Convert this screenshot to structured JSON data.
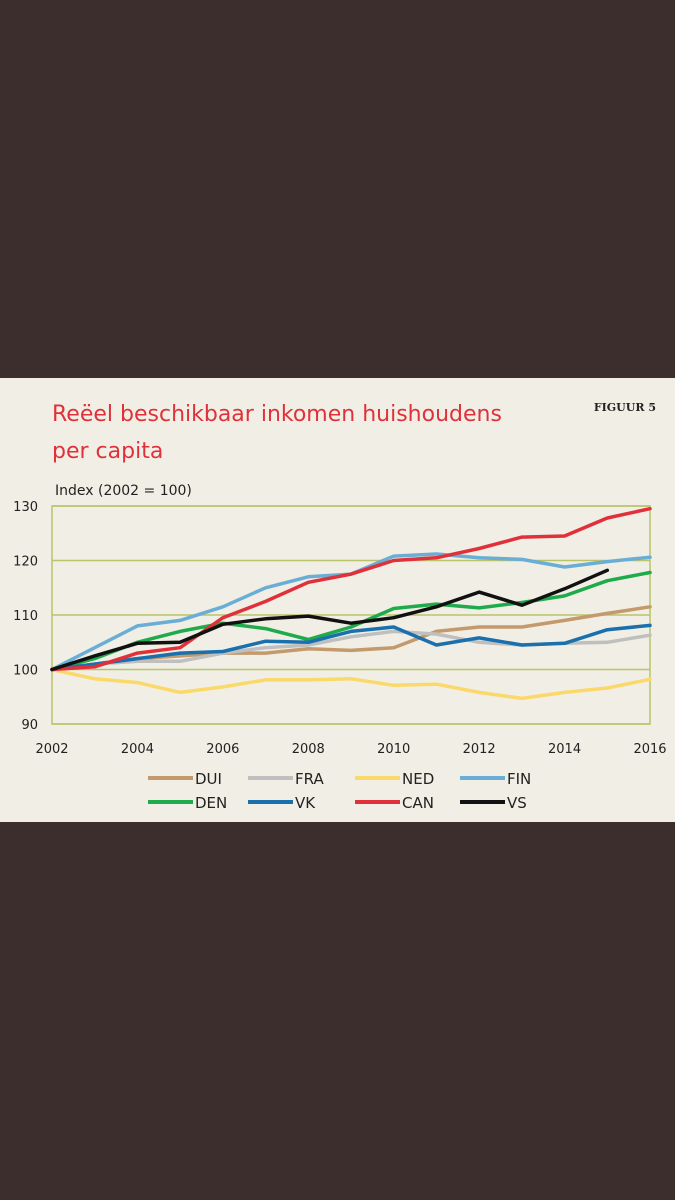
{
  "figure": {
    "title_line1": "Reëel beschikbaar inkomen huishoudens",
    "title_line2": "per capita",
    "figure_label": "FIGUUR 5"
  },
  "chart_data": {
    "type": "line",
    "title": "Reëel beschikbaar inkomen huishoudens per capita",
    "ylabel": "Index (2002 = 100)",
    "xlabel": "",
    "xlim": [
      2002,
      2016
    ],
    "ylim": [
      90,
      130
    ],
    "x_ticks": [
      2002,
      2004,
      2006,
      2008,
      2010,
      2012,
      2014,
      2016
    ],
    "y_ticks": [
      90,
      100,
      110,
      120,
      130
    ],
    "grid": true,
    "legend": "bottom",
    "series": [
      {
        "name": "DUI",
        "color": "#c49a6c",
        "x": [
          2002,
          2003,
          2004,
          2005,
          2006,
          2007,
          2008,
          2009,
          2010,
          2011,
          2012,
          2013,
          2014,
          2015,
          2016
        ],
        "values": [
          100,
          101,
          102,
          102.5,
          103,
          103,
          103.8,
          103.5,
          104,
          107,
          107.8,
          107.8,
          109,
          110.3,
          111.5
        ]
      },
      {
        "name": "FRA",
        "color": "#bfbfbf",
        "x": [
          2002,
          2003,
          2004,
          2005,
          2006,
          2007,
          2008,
          2009,
          2010,
          2011,
          2012,
          2013,
          2014,
          2015,
          2016
        ],
        "values": [
          100,
          101,
          101.5,
          101.5,
          103,
          104,
          104.5,
          106,
          107,
          106.5,
          105,
          104.5,
          104.8,
          105,
          106.3
        ]
      },
      {
        "name": "NED",
        "color": "#fbd86a",
        "x": [
          2002,
          2003,
          2004,
          2005,
          2006,
          2007,
          2008,
          2009,
          2010,
          2011,
          2012,
          2013,
          2014,
          2015,
          2016
        ],
        "values": [
          100,
          98.3,
          97.6,
          95.8,
          96.8,
          98.1,
          98.1,
          98.3,
          97.1,
          97.3,
          95.8,
          94.7,
          95.8,
          96.6,
          98.2
        ]
      },
      {
        "name": "FIN",
        "color": "#6aaed6",
        "x": [
          2002,
          2003,
          2004,
          2005,
          2006,
          2007,
          2008,
          2009,
          2010,
          2011,
          2012,
          2013,
          2014,
          2015,
          2016
        ],
        "values": [
          100,
          104,
          108,
          109,
          111.5,
          115,
          117,
          117.5,
          120.8,
          121.2,
          120.5,
          120.2,
          118.8,
          119.8,
          120.6
        ]
      },
      {
        "name": "DEN",
        "color": "#1fab4c",
        "x": [
          2002,
          2003,
          2004,
          2005,
          2006,
          2007,
          2008,
          2009,
          2010,
          2011,
          2012,
          2013,
          2014,
          2015,
          2016
        ],
        "values": [
          100,
          102,
          105,
          107,
          108.5,
          107.5,
          105.5,
          107.8,
          111.2,
          112,
          111.3,
          112.3,
          113.5,
          116.3,
          117.8
        ]
      },
      {
        "name": "VK",
        "color": "#1a6fad",
        "x": [
          2002,
          2003,
          2004,
          2005,
          2006,
          2007,
          2008,
          2009,
          2010,
          2011,
          2012,
          2013,
          2014,
          2015,
          2016
        ],
        "values": [
          100,
          101,
          102,
          103,
          103.3,
          105.2,
          105,
          107,
          107.8,
          104.5,
          105.8,
          104.5,
          104.8,
          107.3,
          108.1
        ]
      },
      {
        "name": "CAN",
        "color": "#e0313b",
        "x": [
          2002,
          2003,
          2004,
          2005,
          2006,
          2007,
          2008,
          2009,
          2010,
          2011,
          2012,
          2013,
          2014,
          2015,
          2016
        ],
        "values": [
          100,
          100.5,
          103,
          104,
          109.5,
          112.5,
          116,
          117.5,
          120,
          120.5,
          122.2,
          124.3,
          124.5,
          127.8,
          129.5
        ]
      },
      {
        "name": "VS",
        "color": "#111111",
        "x": [
          2002,
          2003,
          2004,
          2005,
          2006,
          2007,
          2008,
          2009,
          2010,
          2011,
          2012,
          2013,
          2014,
          2015
        ],
        "values": [
          100,
          102.5,
          104.8,
          105,
          108.3,
          109.3,
          109.8,
          108.5,
          109.5,
          111.5,
          114.2,
          111.8,
          114.8,
          118.2
        ]
      }
    ]
  }
}
